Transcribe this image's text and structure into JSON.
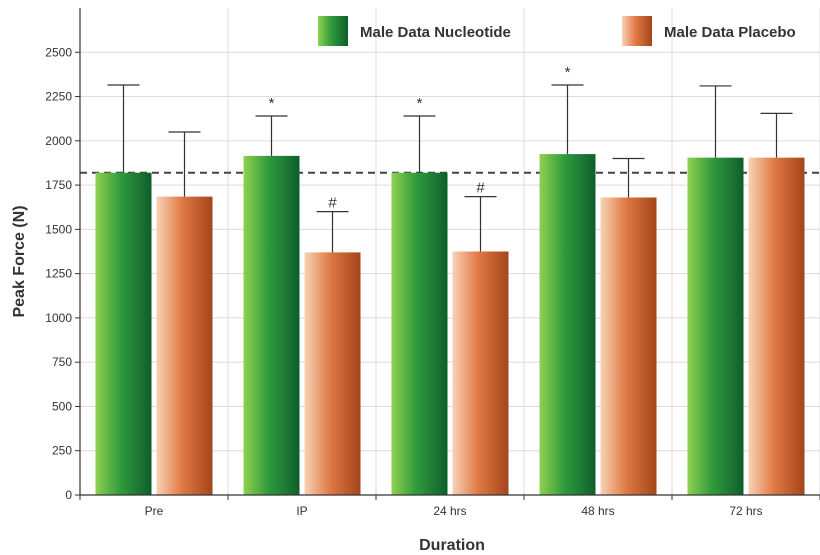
{
  "chart_data": {
    "type": "bar",
    "title": "",
    "xlabel": "Duration",
    "ylabel": "Peak Force (N)",
    "ylim": [
      0,
      2750
    ],
    "yticks": [
      0,
      250,
      500,
      750,
      1000,
      1250,
      1500,
      1750,
      2000,
      2250,
      2500
    ],
    "grid": true,
    "legend_position": "top",
    "categories": [
      "Pre",
      "IP",
      "24 hrs",
      "48 hrs",
      "72 hrs"
    ],
    "reference_line": 1820,
    "series": [
      {
        "name": "Male Data Nucleotide",
        "colors": [
          "#8fd14f",
          "#0f5e2c"
        ],
        "values": [
          1820,
          1915,
          1820,
          1925,
          1905
        ],
        "error_upper": [
          2315,
          2140,
          2140,
          2315,
          2310
        ],
        "annotations": [
          "",
          "*",
          "*",
          "*",
          ""
        ]
      },
      {
        "name": "Male Data Placebo",
        "colors": [
          "#f3b48b",
          "#a3441a"
        ],
        "values": [
          1685,
          1370,
          1375,
          1680,
          1905
        ],
        "error_upper": [
          2050,
          1600,
          1685,
          1900,
          2155
        ],
        "annotations": [
          "",
          "#",
          "#",
          "",
          ""
        ]
      }
    ]
  }
}
